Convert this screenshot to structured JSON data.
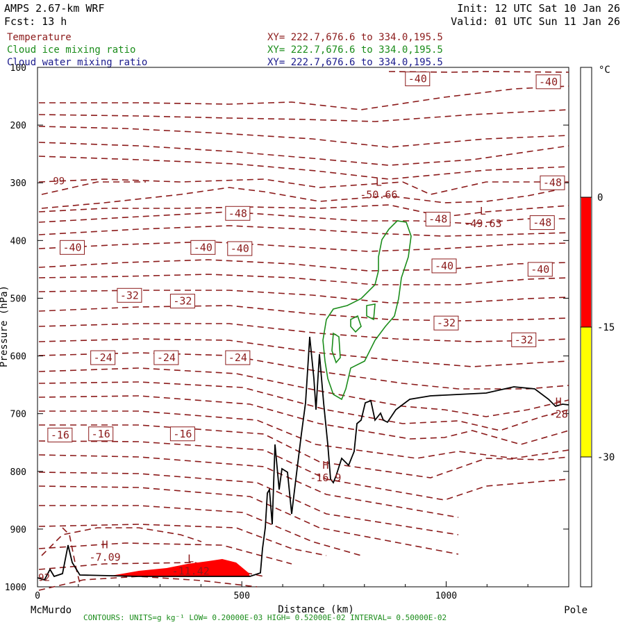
{
  "header": {
    "model": "AMPS 2.67-km WRF",
    "forecast": "Fcst:   13 h",
    "init": "Init: 12 UTC Sat 10 Jan 26",
    "valid": "Valid: 01 UTC Sun 11 Jan 26",
    "fields": [
      {
        "name": "Temperature",
        "xy": "XY= 222.7,676.6 to 334.0,195.5",
        "color": "#8b1a1a"
      },
      {
        "name": "Cloud ice mixing ratio",
        "xy": "XY= 222.7,676.6 to 334.0,195.5",
        "color": "#1a8c1a"
      },
      {
        "name": "Cloud water mixing ratio",
        "xy": "XY= 222.7,676.6 to 334.0,195.5",
        "color": "#1a1a8c"
      }
    ]
  },
  "footer": {
    "contours": "CONTOURS:  UNITS=g kg⁻¹  LOW= 0.20000E-03  HIGH= 0.52000E-02  INTERVAL=  0.50000E-02"
  },
  "chart_data": {
    "type": "cross-section",
    "xlabel": "Distance (km)",
    "ylabel": "Pressure (hPa)",
    "xlim": [
      0,
      1300
    ],
    "ylim": [
      1000,
      100
    ],
    "x_ticks": [
      0,
      500,
      1000
    ],
    "y_ticks": [
      100,
      200,
      300,
      400,
      500,
      600,
      700,
      800,
      900,
      1000
    ],
    "x_endpoints": {
      "left": "McMurdo",
      "right": "Pole"
    },
    "colorbar": {
      "unit": "°C",
      "levels": [
        {
          "label": "0",
          "value": 0
        },
        {
          "label": "-15",
          "value": -15
        },
        {
          "label": "-30",
          "value": -30
        }
      ],
      "bands": [
        {
          "from": 0,
          "to": -15,
          "color": "#ff0000"
        },
        {
          "from": -15,
          "to": -30,
          "color": "#ffff00"
        }
      ]
    },
    "temperature_contour_labels": [
      {
        "text": "-40",
        "x": 930,
        "p": 120
      },
      {
        "text": "-40",
        "x": 1250,
        "p": 125
      },
      {
        "text": "-48",
        "x": 1260,
        "p": 300
      },
      {
        "text": "-48",
        "x": 490,
        "p": 353
      },
      {
        "text": "-48",
        "x": 980,
        "p": 363
      },
      {
        "text": "-48",
        "x": 1235,
        "p": 369
      },
      {
        "text": "-40",
        "x": 85,
        "p": 412
      },
      {
        "text": "-40",
        "x": 405,
        "p": 412
      },
      {
        "text": "-40",
        "x": 495,
        "p": 414
      },
      {
        "text": "-40",
        "x": 995,
        "p": 444
      },
      {
        "text": "-40",
        "x": 1230,
        "p": 450
      },
      {
        "text": "-32",
        "x": 225,
        "p": 495
      },
      {
        "text": "-32",
        "x": 355,
        "p": 505
      },
      {
        "text": "-32",
        "x": 1000,
        "p": 543
      },
      {
        "text": "-32",
        "x": 1190,
        "p": 572
      },
      {
        "text": "-24",
        "x": 160,
        "p": 603
      },
      {
        "text": "-24",
        "x": 315,
        "p": 603
      },
      {
        "text": "-24",
        "x": 490,
        "p": 603
      },
      {
        "text": "-16",
        "x": 55,
        "p": 737
      },
      {
        "text": "-16",
        "x": 155,
        "p": 735
      },
      {
        "text": "-16",
        "x": 355,
        "p": 735
      }
    ],
    "extrema": [
      {
        "type": "L",
        "value": "-50.66",
        "x": 835,
        "p": 310
      },
      {
        "type": "L",
        "value": "-49.63",
        "x": 1090,
        "p": 360
      },
      {
        "type": "H",
        "value": "-7.09",
        "x": 165,
        "p": 938
      },
      {
        "type": "L",
        "value": "-11.42",
        "x": 375,
        "p": 962
      },
      {
        "type": "H",
        "value": "-16.9",
        "x": 705,
        "p": 800
      },
      {
        "type": "H",
        "value": "-28",
        "x": 1275,
        "p": 690
      }
    ],
    "edge_numbers": [
      {
        "text": "99",
        "x": 38,
        "p": 303
      },
      {
        "text": "92",
        "x": 2,
        "p": 990
      }
    ]
  }
}
